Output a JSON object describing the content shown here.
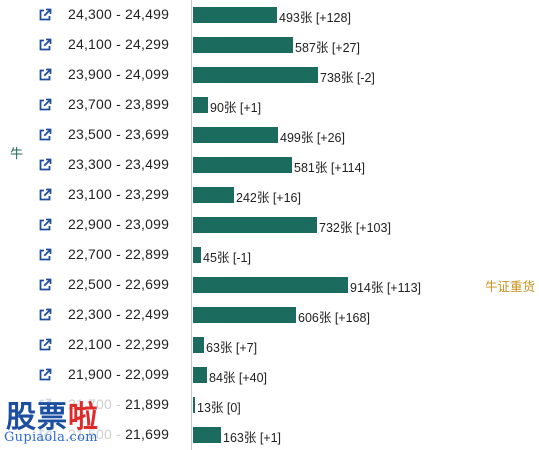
{
  "colors": {
    "bar": "#1b6b5e",
    "side_label": "#1b6b5e",
    "marker_label": "#c8901a",
    "link_icon": "#1d4e9e",
    "watermark_blue": "#1d4fa0",
    "watermark_red": "#e02a2a"
  },
  "icons": {
    "row_link": "external-link-icon"
  },
  "labels": {
    "side": "牛",
    "marker": "牛证重货"
  },
  "watermark": {
    "logo": [
      "股",
      "票",
      "啦"
    ],
    "url": "Gupiaola.com"
  },
  "chart_data": {
    "type": "bar",
    "orientation": "horizontal",
    "unit": "张",
    "categories": [
      "24,300 - 24,499",
      "24,100 - 24,299",
      "23,900 - 24,099",
      "23,700 - 23,899",
      "23,500 - 23,699",
      "23,300 - 23,499",
      "23,100 - 23,299",
      "22,900 - 23,099",
      "22,700 - 22,899",
      "22,500 - 22,699",
      "22,300 - 22,499",
      "22,100 - 22,299",
      "21,900 - 22,099",
      "21,700 - 21,899",
      "21,500 - 21,699"
    ],
    "values": [
      493,
      587,
      738,
      90,
      499,
      581,
      242,
      732,
      45,
      914,
      606,
      63,
      84,
      13,
      163
    ],
    "changes": [
      "+128",
      "+27",
      "-2",
      "+1",
      "+26",
      "+114",
      "+16",
      "+103",
      "-1",
      "+113",
      "+168",
      "+7",
      "+40",
      "0",
      "+1"
    ],
    "value_labels": [
      "493张 [+128]",
      "587张 [+27]",
      "738张 [-2]",
      "90张 [+1]",
      "499张 [+26]",
      "581张 [+114]",
      "242张 [+16]",
      "732张 [+103]",
      "45张 [-1]",
      "914张 [+113]",
      "606张 [+168]",
      "63张 [+7]",
      "84张 [+40]",
      "13张 [0]",
      "163张 [+1]"
    ],
    "xlim": [
      0,
      914
    ],
    "grid": false,
    "legend": "none"
  }
}
